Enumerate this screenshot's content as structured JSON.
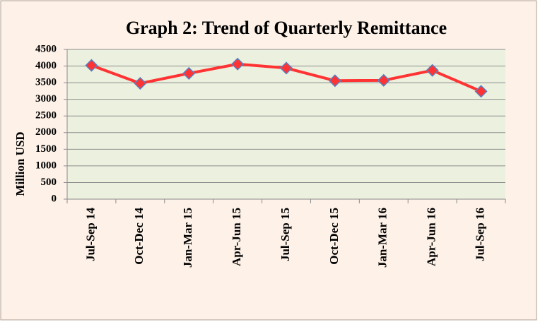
{
  "chart_data": {
    "type": "line",
    "title": "Graph 2: Trend of Quarterly Remittance",
    "y_label": "Million USD",
    "categories": [
      "Jul-Sep 14",
      "Oct-Dec 14",
      "Jan-Mar 15",
      "Apr-Jun 15",
      "Jul-Sep 15",
      "Oct-Dec 15",
      "Jan-Mar 16",
      "Apr-Jun 16",
      "Jul-Sep 16"
    ],
    "series": [
      {
        "color": "#ff3333",
        "values": [
          4020,
          3480,
          3780,
          4060,
          3940,
          3560,
          3570,
          3870,
          3240
        ]
      }
    ],
    "ylim": [
      0,
      4500
    ],
    "yticks": [
      0,
      500,
      1000,
      1500,
      2000,
      2500,
      3000,
      3500,
      4000,
      4500
    ],
    "grid": true
  }
}
